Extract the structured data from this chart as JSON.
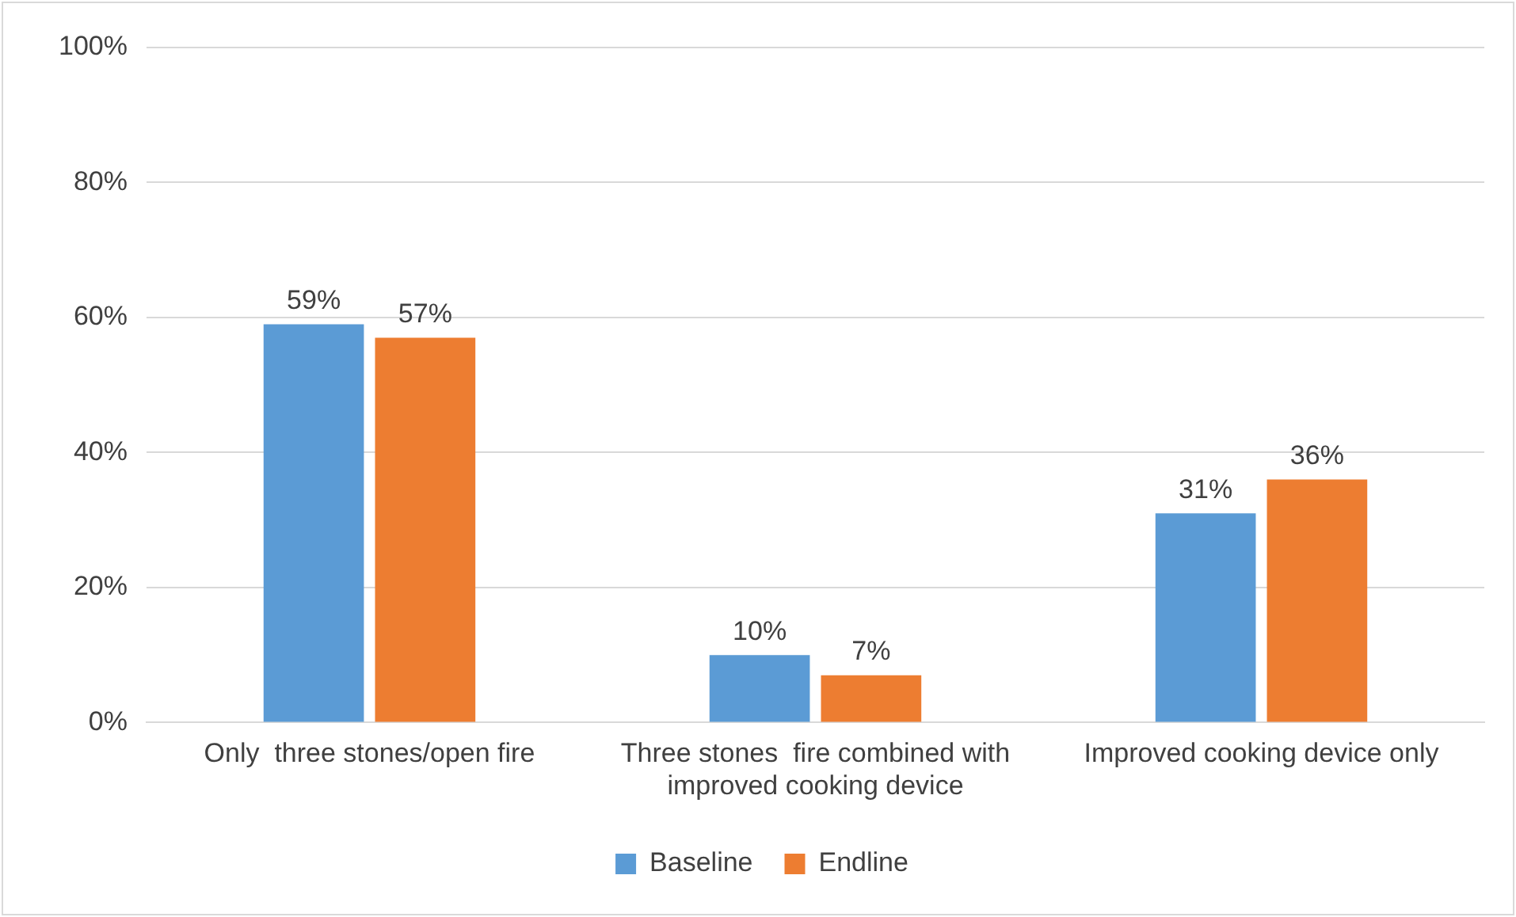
{
  "chart_data": {
    "type": "bar",
    "categories": [
      "Only  three stones/open fire",
      "Three stones  fire combined with improved cooking device",
      "Improved cooking device only"
    ],
    "series": [
      {
        "name": "Baseline",
        "color": "#5b9bd5",
        "values": [
          59,
          10,
          31
        ],
        "value_labels": [
          "59%",
          "10%",
          "31%"
        ]
      },
      {
        "name": "Endline",
        "color": "#ed7d31",
        "values": [
          57,
          7,
          36
        ],
        "value_labels": [
          "57%",
          "7%",
          "36%"
        ]
      }
    ],
    "ylim": [
      0,
      100
    ],
    "yticks": [
      {
        "value": 0,
        "label": "0%"
      },
      {
        "value": 20,
        "label": "20%"
      },
      {
        "value": 40,
        "label": "40%"
      },
      {
        "value": 60,
        "label": "60%"
      },
      {
        "value": 80,
        "label": "80%"
      },
      {
        "value": 100,
        "label": "100%"
      }
    ],
    "grid": "y",
    "legend": "bottom"
  }
}
